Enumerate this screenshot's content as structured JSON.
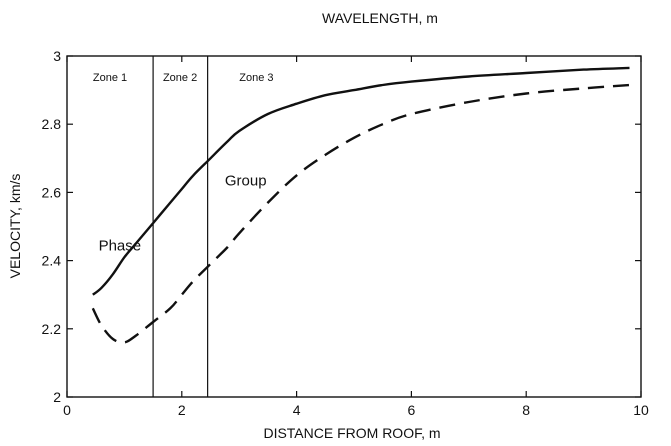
{
  "chart_data": {
    "type": "line",
    "title": "WAVELENGTH, m",
    "xlabel": "DISTANCE FROM ROOF, m",
    "ylabel": "VELOCITY, km/s",
    "xlim": [
      0,
      10
    ],
    "ylim": [
      2,
      3
    ],
    "xticks": [
      0,
      2,
      4,
      6,
      8,
      10
    ],
    "xtick_labels": [
      "0",
      "2",
      "4",
      "6",
      "8",
      "10"
    ],
    "yticks": [
      2,
      2.2,
      2.4,
      2.6,
      2.8,
      3
    ],
    "ytick_labels": [
      "2",
      "2.2",
      "2.4",
      "2.6",
      "2.8",
      "3"
    ],
    "grid": false,
    "legend": "none",
    "zone_boundaries": [
      1.5,
      2.45
    ],
    "zones": [
      {
        "label": "Zone 1",
        "x": 0.75
      },
      {
        "label": "Zone 2",
        "x": 1.97
      },
      {
        "label": "Zone 3",
        "x": 3.3
      }
    ],
    "series": [
      {
        "name": "Phase",
        "style": "solid",
        "label_at": [
          0.55,
          2.43
        ],
        "x": [
          0.45,
          0.6,
          0.8,
          1.0,
          1.2,
          1.5,
          1.8,
          2.0,
          2.2,
          2.5,
          2.8,
          3.0,
          3.5,
          4.0,
          4.5,
          5.0,
          5.5,
          6.0,
          7.0,
          8.0,
          9.0,
          9.8
        ],
        "values": [
          2.3,
          2.32,
          2.36,
          2.41,
          2.45,
          2.51,
          2.57,
          2.61,
          2.65,
          2.7,
          2.75,
          2.78,
          2.83,
          2.86,
          2.885,
          2.9,
          2.915,
          2.925,
          2.94,
          2.95,
          2.96,
          2.965
        ]
      },
      {
        "name": "Group",
        "style": "dashed",
        "label_at": [
          2.75,
          2.62
        ],
        "x": [
          0.45,
          0.6,
          0.8,
          1.0,
          1.2,
          1.5,
          1.8,
          2.0,
          2.2,
          2.5,
          2.8,
          3.0,
          3.5,
          4.0,
          4.5,
          5.0,
          5.5,
          6.0,
          7.0,
          8.0,
          9.0,
          9.8
        ],
        "values": [
          2.26,
          2.21,
          2.17,
          2.16,
          2.18,
          2.22,
          2.26,
          2.3,
          2.34,
          2.39,
          2.44,
          2.48,
          2.57,
          2.65,
          2.71,
          2.76,
          2.8,
          2.83,
          2.865,
          2.89,
          2.905,
          2.915
        ]
      }
    ]
  }
}
